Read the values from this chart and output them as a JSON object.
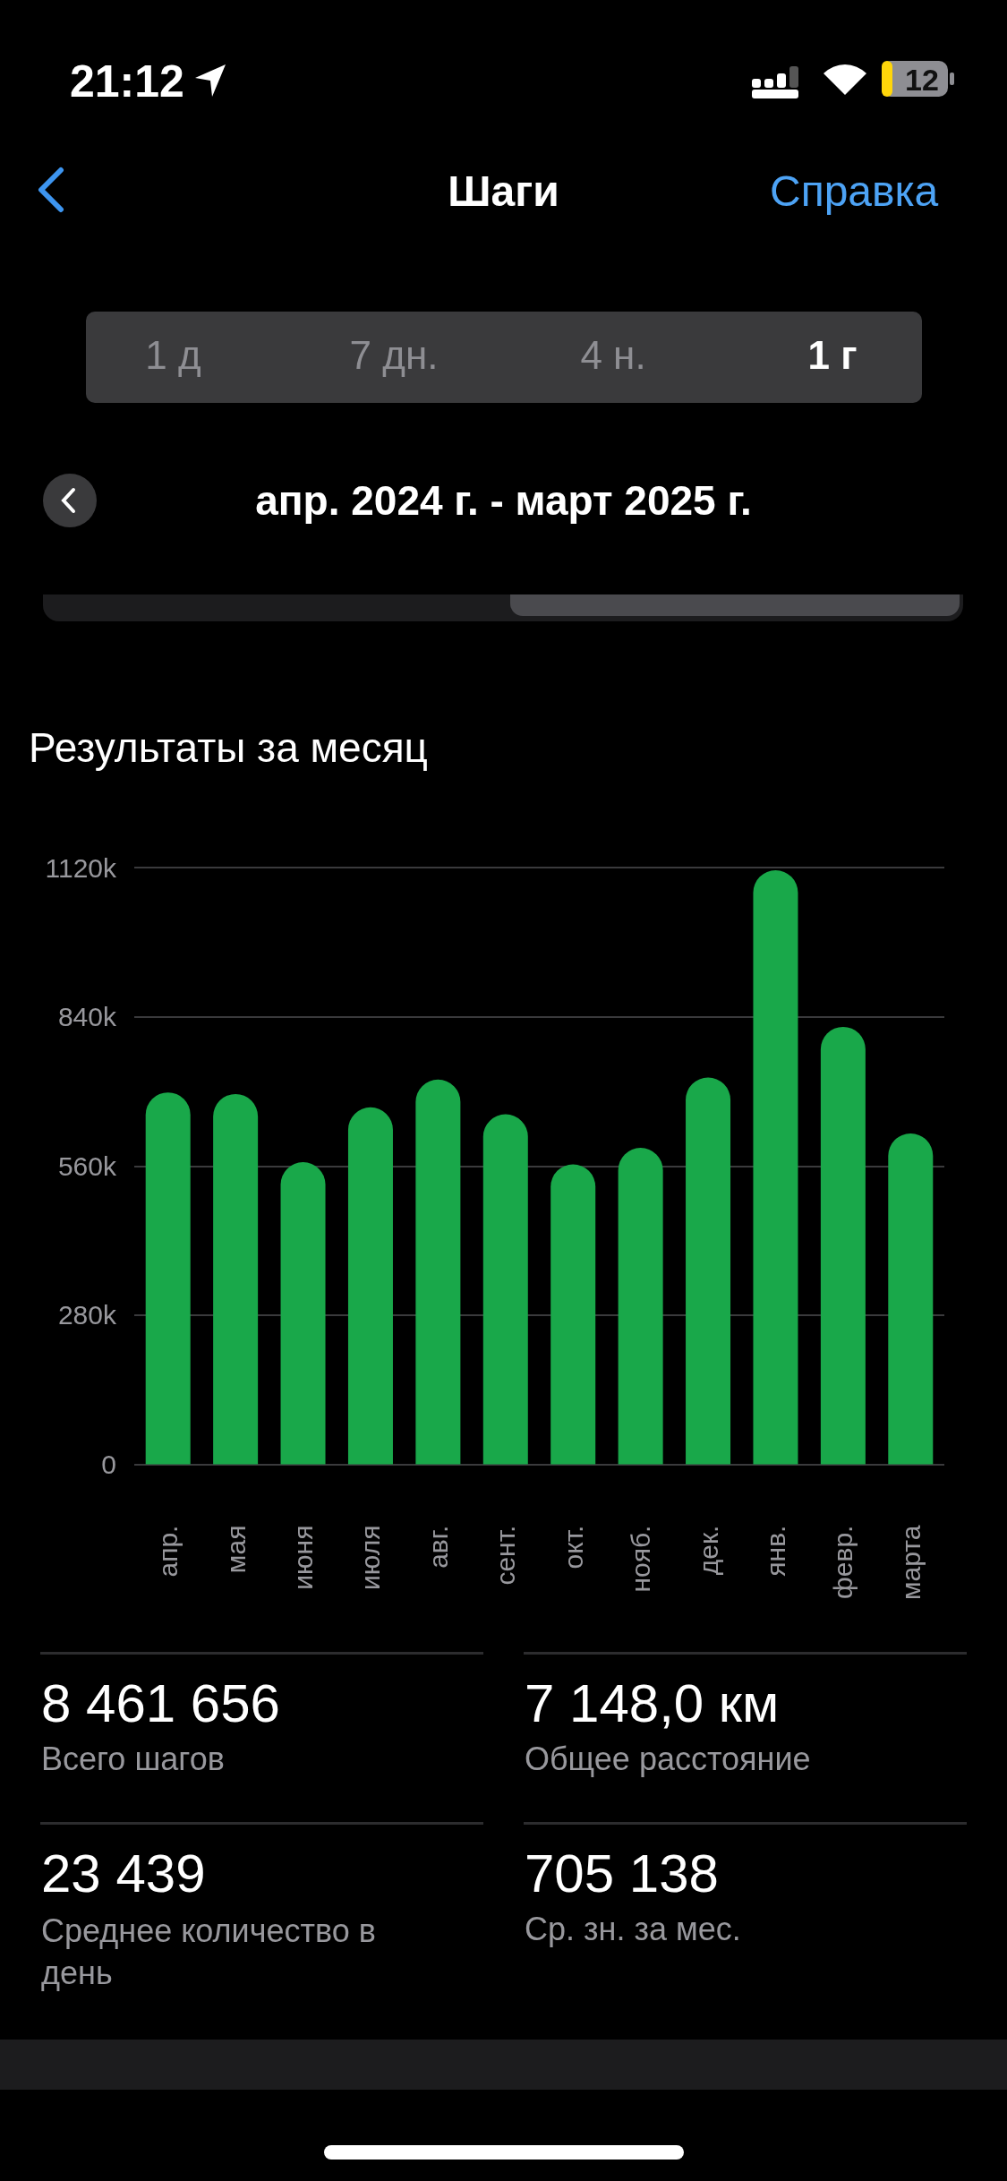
{
  "chart_data": {
    "type": "bar",
    "title": "Результаты за месяц",
    "subtitle": "апр. 2024 г. - март 2025 г.",
    "categories": [
      "апр.",
      "мая",
      "июня",
      "июля",
      "авг.",
      "сент.",
      "окт.",
      "нояб.",
      "дек.",
      "янв.",
      "февр.",
      "марта"
    ],
    "values": [
      698000,
      695000,
      567000,
      670000,
      722000,
      657000,
      563000,
      594000,
      726000,
      1115000,
      821000,
      621000
    ],
    "color": "#19a84a",
    "ylim": [
      0,
      1120000
    ],
    "yticks": [
      0,
      {
        "value": 280000,
        "label": "280k"
      },
      {
        "value": 560000,
        "label": "560k"
      },
      {
        "value": 840000,
        "label": "840k"
      },
      {
        "value": 1120000,
        "label": "1120k"
      }
    ],
    "grid": "y",
    "annotations": [
      "21:12",
      "12",
      "Шаги",
      "Справка",
      "1 д",
      "7 дн.",
      "4 н.",
      "1 г",
      "8 461 656",
      "Всего шагов",
      "7 148,0 км",
      "Общее расстояние",
      "23 439",
      "Среднее количество в день",
      "705 138",
      "Ср. зн. за мес."
    ]
  }
}
